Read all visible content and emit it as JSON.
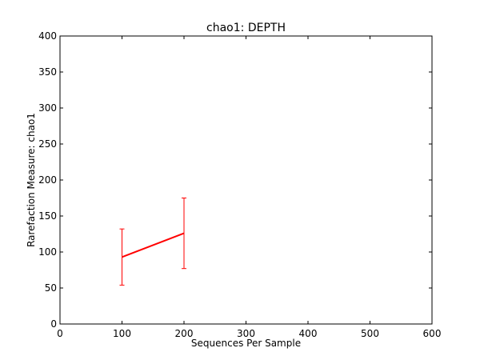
{
  "chart_data": {
    "type": "line",
    "title": "chao1: DEPTH",
    "xlabel": "Sequences Per Sample",
    "ylabel": "Rarefaction Measure: chao1",
    "xlim": [
      0,
      600
    ],
    "ylim": [
      0,
      400
    ],
    "xticks": [
      0,
      100,
      200,
      300,
      400,
      500,
      600
    ],
    "yticks": [
      0,
      50,
      100,
      150,
      200,
      250,
      300,
      350,
      400
    ],
    "grid": false,
    "series": [
      {
        "name": "",
        "color": "#ff0000",
        "x": [
          100,
          200
        ],
        "y": [
          93,
          126
        ],
        "yerr_low": [
          54,
          77
        ],
        "yerr_high": [
          132,
          175
        ]
      }
    ]
  }
}
